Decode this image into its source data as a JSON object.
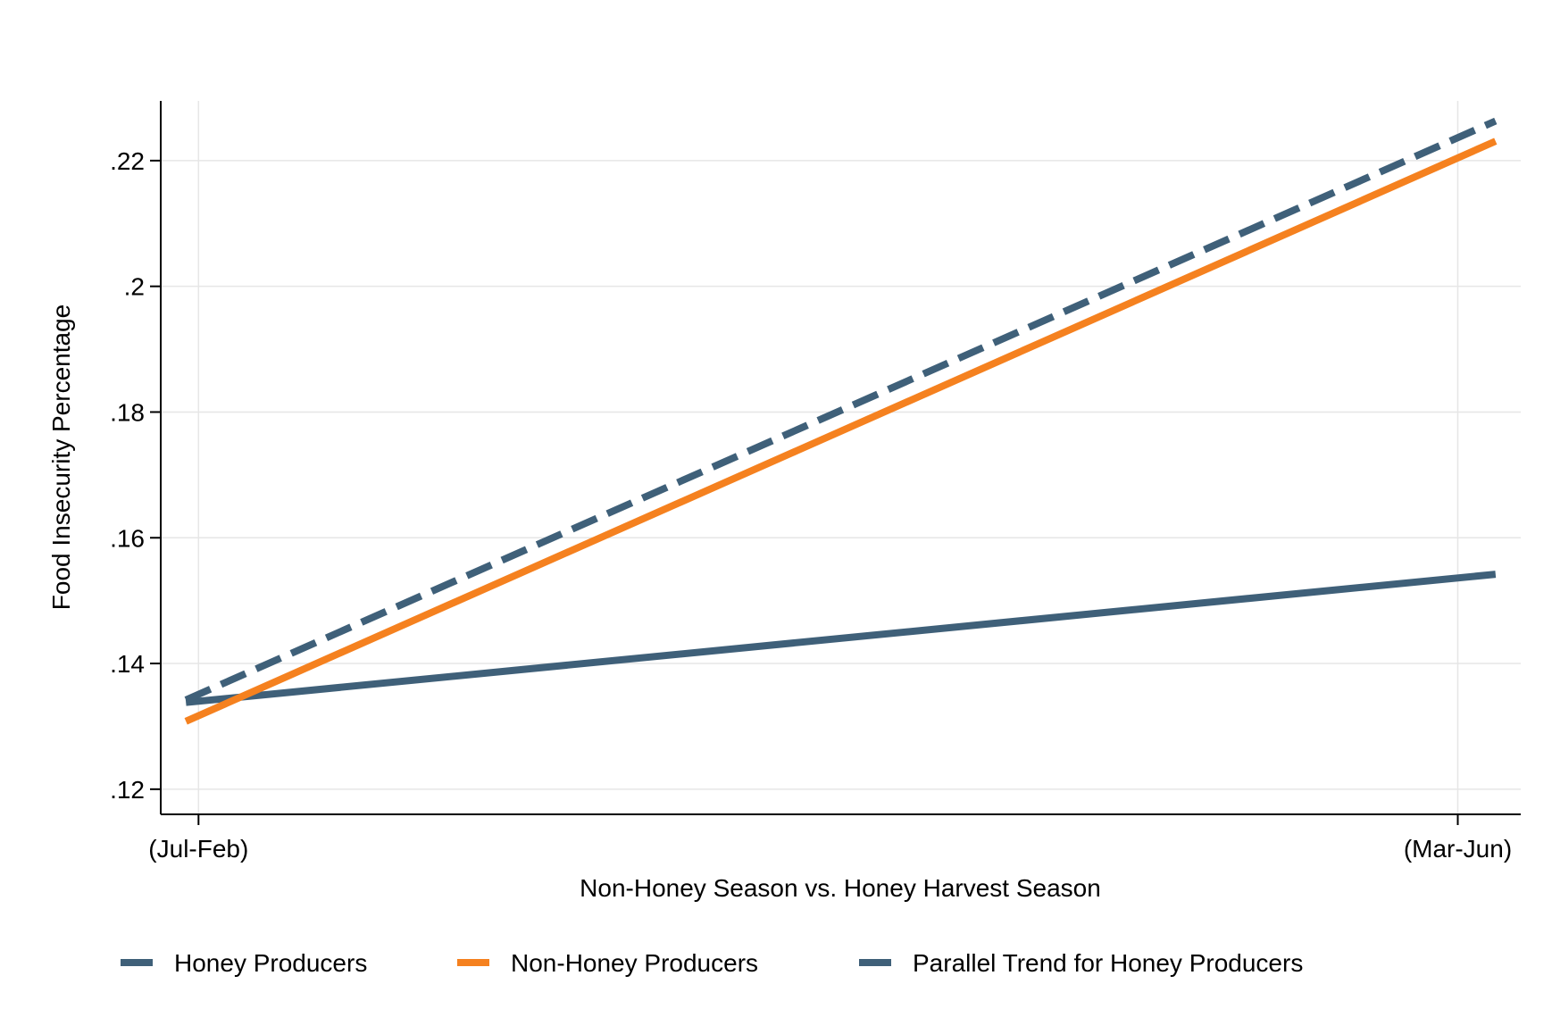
{
  "chart_data": {
    "type": "line",
    "title": "",
    "xlabel": "Non-Honey Season vs. Honey Harvest Season",
    "ylabel": "Food Insecurity Percentage",
    "categories": [
      "(Jul-Feb)",
      "(Mar-Jun)"
    ],
    "x": [
      0,
      1
    ],
    "xlim": [
      -0.03,
      1.05
    ],
    "ylim": [
      0.116,
      0.2295
    ],
    "y_ticks": [
      0.12,
      0.14,
      0.16,
      0.18,
      0.2,
      0.22
    ],
    "y_tick_labels": [
      ".12",
      ".14",
      ".16",
      ".18",
      ".2",
      ".22"
    ],
    "grid": true,
    "legend_position": "bottom",
    "series": [
      {
        "name": "Honey Producers",
        "x": [
          -0.01,
          1.03
        ],
        "values": [
          0.1338,
          0.1542
        ],
        "color": "#3f6079",
        "style": "solid"
      },
      {
        "name": "Non-Honey Producers",
        "x": [
          -0.01,
          1.03
        ],
        "values": [
          0.1308,
          0.2231
        ],
        "color": "#f5811f",
        "style": "solid"
      },
      {
        "name": "Parallel Trend for Honey Producers",
        "x": [
          -0.01,
          1.03
        ],
        "values": [
          0.1342,
          0.2263
        ],
        "color": "#3f6079",
        "style": "dashed"
      }
    ]
  }
}
